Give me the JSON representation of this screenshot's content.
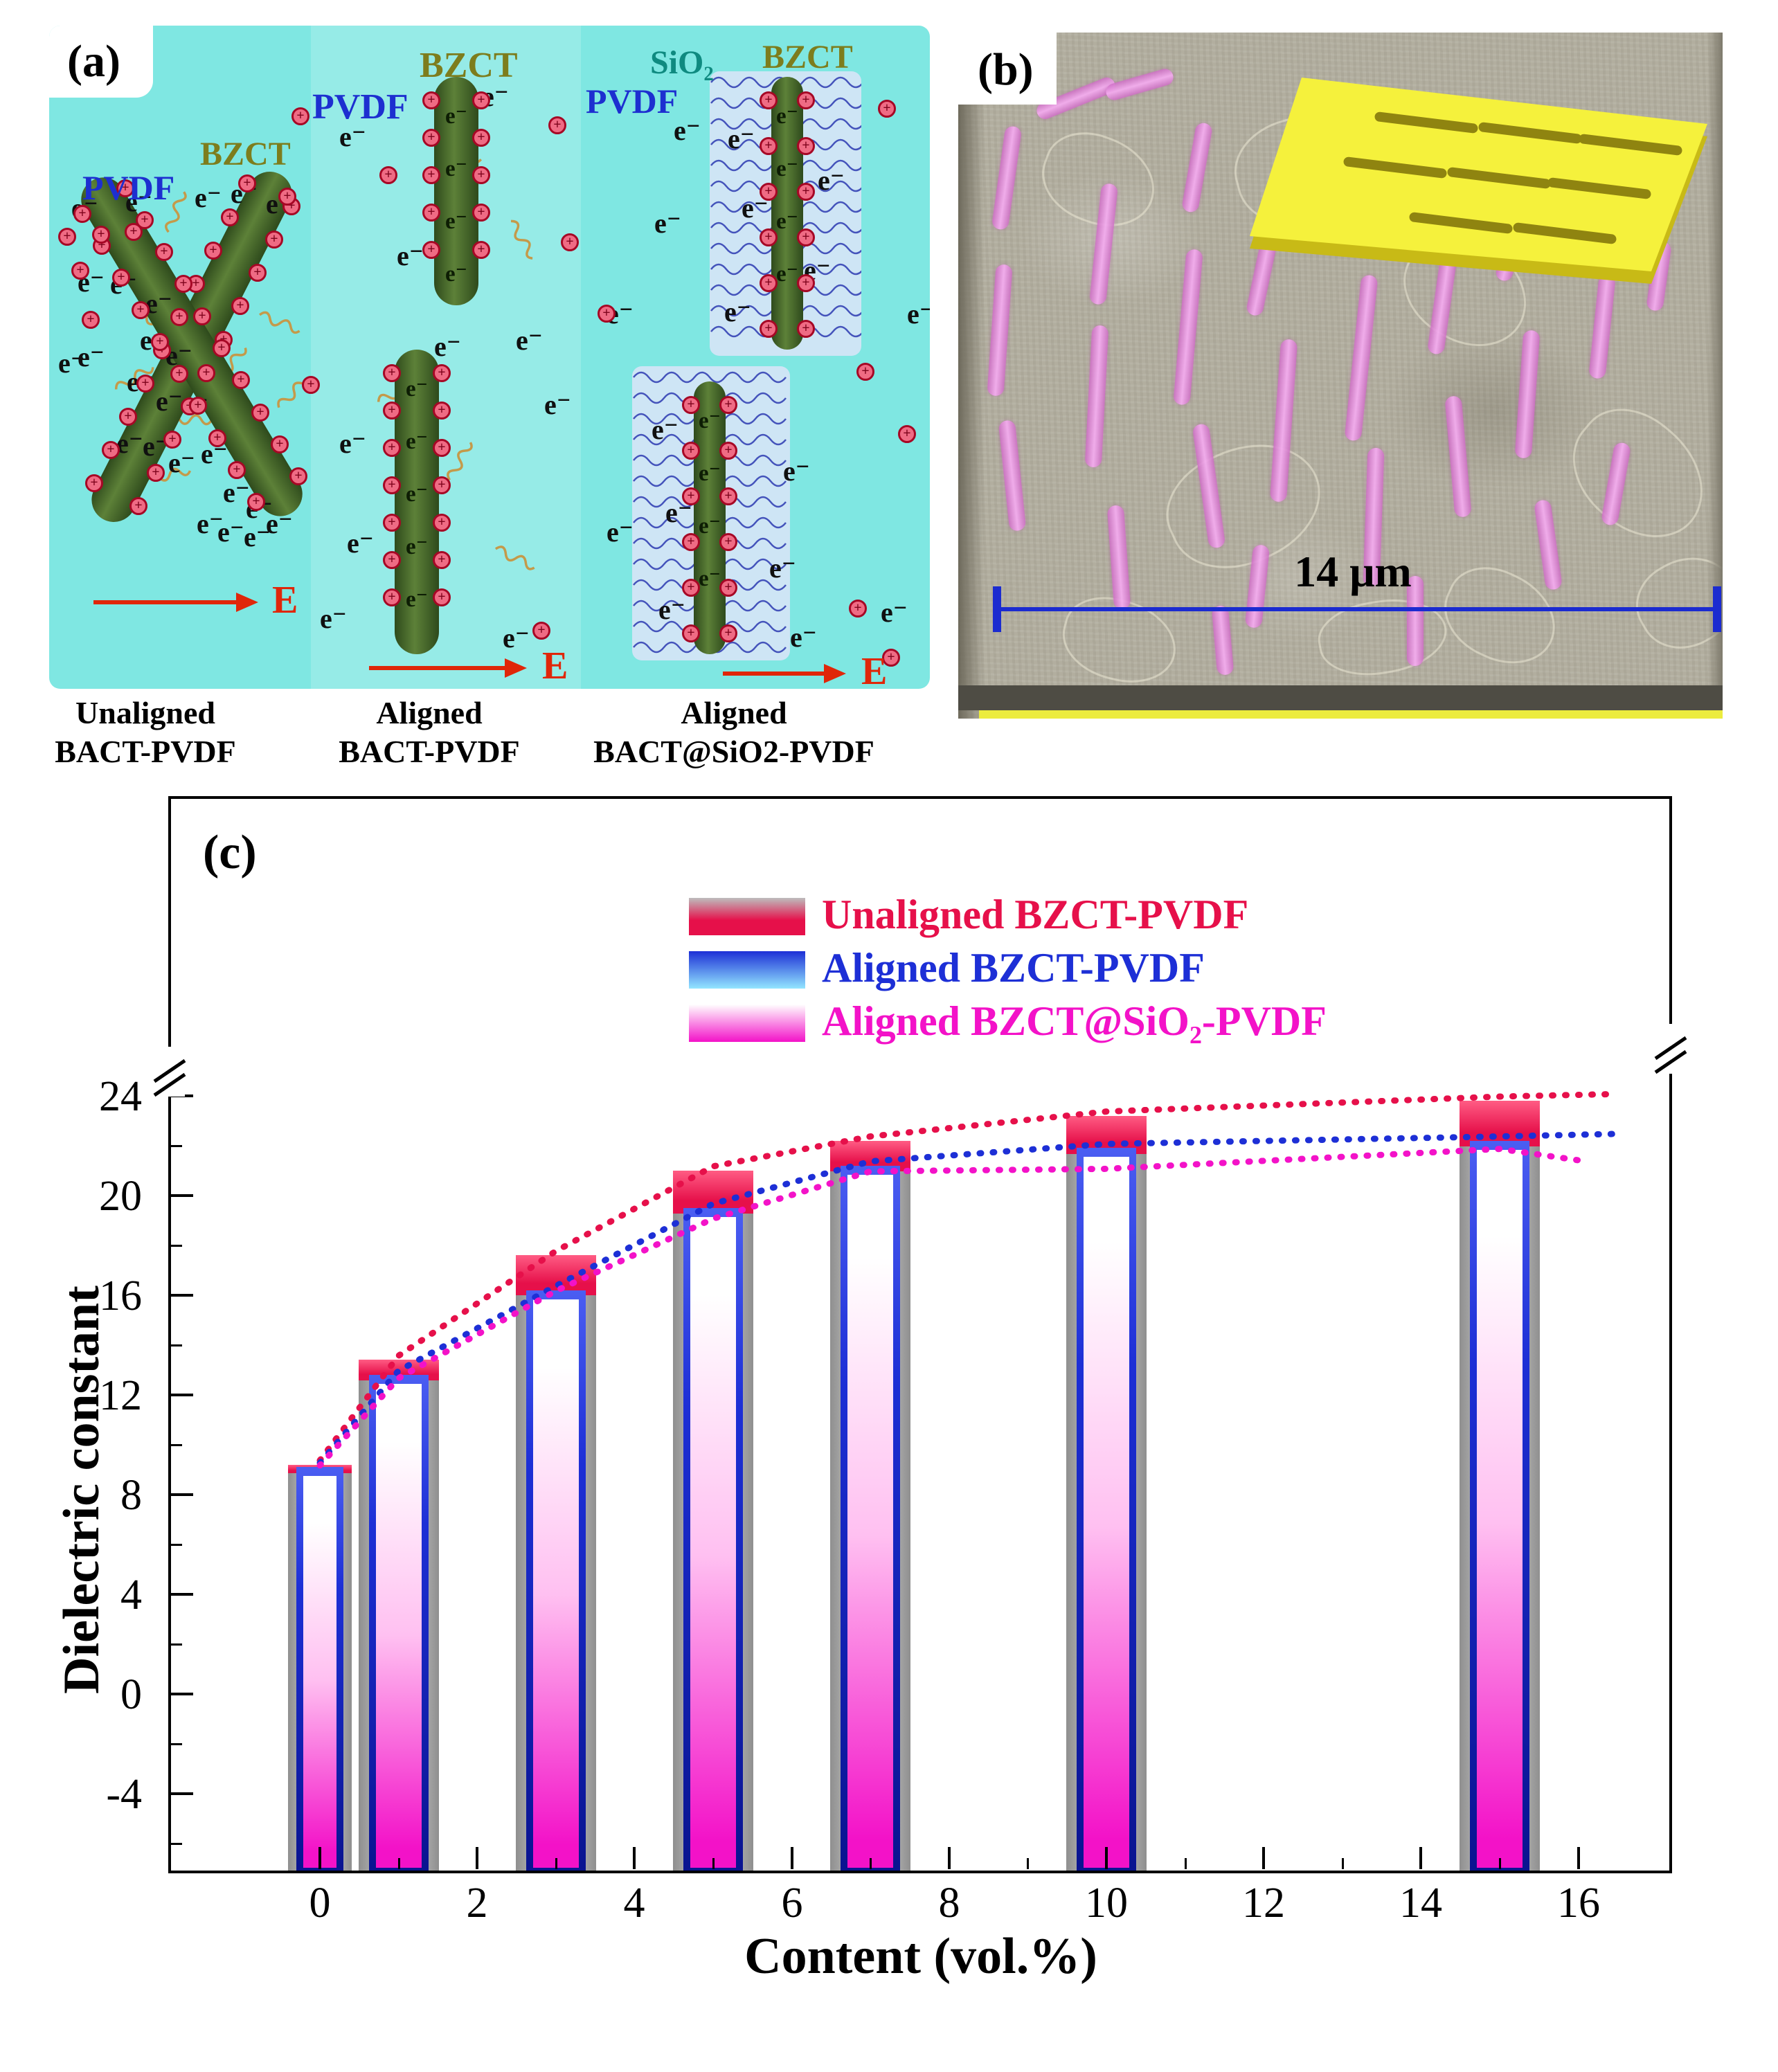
{
  "panel_a": {
    "label": "(a)",
    "materials": {
      "pvdf": "PVDF",
      "bzct": "BZCT",
      "sio2": "SiO₂"
    },
    "symbols": {
      "electron": "e⁻",
      "plus": "+",
      "field": "E"
    },
    "captions": [
      {
        "line1": "Unaligned",
        "line2": "BACT-PVDF"
      },
      {
        "line1": "Aligned",
        "line2": "BACT-PVDF"
      },
      {
        "line1": "Aligned",
        "line2": "BACT@SiO2-PVDF"
      }
    ]
  },
  "panel_b": {
    "label": "(b)",
    "scale_label": "14 μm"
  },
  "panel_c": {
    "label": "(c)"
  },
  "chart_data": {
    "type": "bar",
    "title": "",
    "xlabel": "Content (vol.%)",
    "ylabel": "Dielectric constant",
    "xticks": [
      0,
      2,
      4,
      6,
      8,
      10,
      12,
      14,
      16
    ],
    "yticks": [
      -4,
      0,
      4,
      8,
      12,
      16,
      20,
      24
    ],
    "ylim": [
      -7.2,
      25
    ],
    "axis_break_above": 24,
    "grid": false,
    "legend_position": "top-center",
    "categories": [
      0,
      1,
      3,
      5,
      7,
      10,
      15
    ],
    "series": [
      {
        "name": "Unaligned BZCT-PVDF",
        "color": "#e6104a",
        "values": [
          9.2,
          13.4,
          17.6,
          21.0,
          22.2,
          23.2,
          23.8
        ]
      },
      {
        "name": "Aligned BZCT-PVDF",
        "color": "#1d2fd6",
        "values": [
          9.1,
          12.8,
          16.2,
          19.5,
          21.2,
          21.9,
          22.2
        ]
      },
      {
        "name": "Aligned BZCT@SiO₂-PVDF",
        "color": "#f312c8",
        "values": [
          9.0,
          12.5,
          16.0,
          18.9,
          20.8,
          20.9,
          21.7
        ]
      }
    ]
  }
}
